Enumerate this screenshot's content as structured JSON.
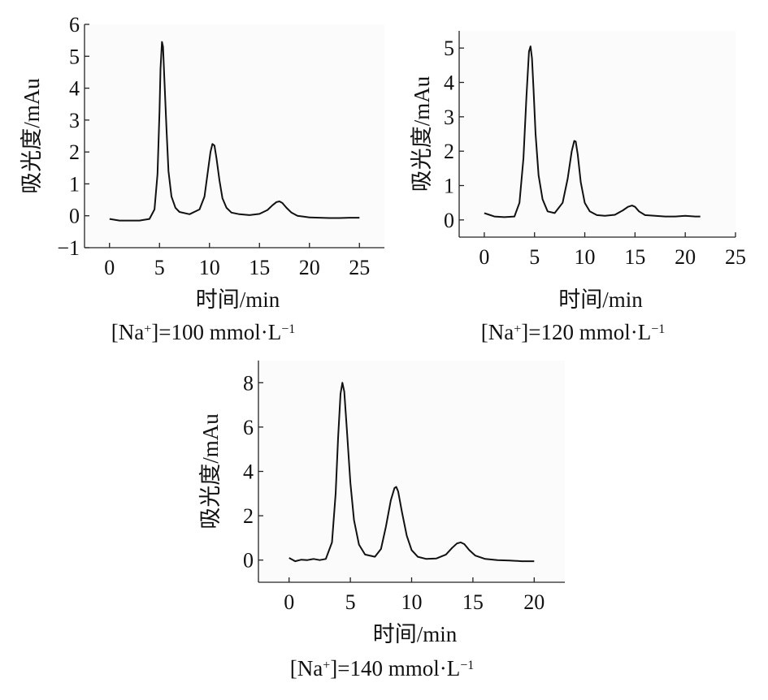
{
  "chart_data": [
    {
      "type": "line",
      "xlabel": "时间/min",
      "ylabel": "吸光度/mAu",
      "caption": {
        "pre": "[Na",
        "sup1": "+",
        "mid": "]=100 mmol·L",
        "sup2": "−1"
      },
      "xlim": [
        -2.5,
        27.5
      ],
      "ylim": [
        -1,
        6
      ],
      "xticks": [
        0,
        5,
        10,
        15,
        20,
        25
      ],
      "yticks": [
        -1,
        0,
        1,
        2,
        3,
        4,
        5,
        6
      ],
      "grid": false,
      "series": [
        {
          "x": [
            0,
            1,
            2,
            3,
            4,
            4.5,
            4.8,
            5.0,
            5.1,
            5.25,
            5.35,
            5.5,
            5.7,
            5.9,
            6.2,
            6.6,
            7,
            8,
            9,
            9.5,
            9.8,
            10.1,
            10.3,
            10.5,
            10.7,
            11.0,
            11.3,
            11.7,
            12.2,
            13,
            14,
            15,
            15.8,
            16.3,
            16.7,
            17.0,
            17.3,
            17.7,
            18.2,
            18.8,
            19.5,
            20,
            21,
            22,
            23,
            24,
            25
          ],
          "y": [
            -0.1,
            -0.15,
            -0.15,
            -0.15,
            -0.1,
            0.2,
            1.3,
            3.3,
            4.6,
            5.45,
            5.3,
            4.2,
            2.7,
            1.4,
            0.6,
            0.25,
            0.12,
            0.05,
            0.2,
            0.6,
            1.3,
            2.0,
            2.25,
            2.2,
            1.8,
            1.1,
            0.55,
            0.25,
            0.1,
            0.05,
            0.02,
            0.06,
            0.18,
            0.33,
            0.43,
            0.45,
            0.4,
            0.25,
            0.1,
            0.0,
            -0.03,
            -0.05,
            -0.06,
            -0.07,
            -0.07,
            -0.06,
            -0.06
          ]
        }
      ]
    },
    {
      "type": "line",
      "xlabel": "时间/min",
      "ylabel": "吸光度/mAu",
      "caption": {
        "pre": "[Na",
        "sup1": "+",
        "mid": "]=120 mmol·L",
        "sup2": "−1"
      },
      "xlim": [
        -2.5,
        25
      ],
      "ylim": [
        -0.5,
        5.5
      ],
      "xticks": [
        0,
        5,
        10,
        15,
        20,
        25
      ],
      "yticks": [
        0,
        1,
        2,
        3,
        4,
        5
      ],
      "grid": false,
      "series": [
        {
          "x": [
            0,
            0.5,
            1,
            2,
            3,
            3.5,
            3.9,
            4.2,
            4.45,
            4.6,
            4.75,
            4.9,
            5.1,
            5.4,
            5.8,
            6.3,
            7,
            7.8,
            8.3,
            8.7,
            8.95,
            9.1,
            9.3,
            9.6,
            10.0,
            10.5,
            11.2,
            12,
            13,
            13.8,
            14.3,
            14.7,
            15.0,
            15.4,
            16,
            17,
            18,
            19,
            20,
            21,
            21.5
          ],
          "y": [
            0.2,
            0.15,
            0.1,
            0.08,
            0.1,
            0.5,
            1.8,
            3.6,
            4.9,
            5.05,
            4.7,
            3.8,
            2.5,
            1.3,
            0.6,
            0.25,
            0.2,
            0.5,
            1.2,
            2.0,
            2.3,
            2.28,
            1.9,
            1.1,
            0.5,
            0.25,
            0.14,
            0.12,
            0.15,
            0.28,
            0.38,
            0.42,
            0.38,
            0.25,
            0.14,
            0.12,
            0.1,
            0.1,
            0.12,
            0.1,
            0.1
          ]
        }
      ]
    },
    {
      "type": "line",
      "xlabel": "时间/min",
      "ylabel": "吸光度/mAu",
      "caption": {
        "pre": "[Na",
        "sup1": "+",
        "mid": "]=140 mmol·L",
        "sup2": "−1"
      },
      "xlim": [
        -2.5,
        22.5
      ],
      "ylim": [
        -1,
        9
      ],
      "xticks": [
        0,
        5,
        10,
        15,
        20
      ],
      "yticks": [
        0,
        2,
        4,
        6,
        8
      ],
      "grid": false,
      "series": [
        {
          "x": [
            0,
            0.5,
            1,
            1.5,
            2,
            2.5,
            3,
            3.5,
            3.8,
            4.0,
            4.2,
            4.35,
            4.5,
            4.7,
            5.0,
            5.3,
            5.7,
            6.2,
            7,
            7.5,
            7.9,
            8.3,
            8.6,
            8.75,
            8.9,
            9.2,
            9.6,
            10.0,
            10.5,
            11.2,
            12,
            12.8,
            13.3,
            13.7,
            14.0,
            14.3,
            14.7,
            15.2,
            16,
            17,
            18,
            19,
            20
          ],
          "y": [
            0.1,
            -0.05,
            0.02,
            0.0,
            0.05,
            0.0,
            0.05,
            0.8,
            3.0,
            5.5,
            7.5,
            8.0,
            7.6,
            6.0,
            3.5,
            1.8,
            0.7,
            0.25,
            0.15,
            0.5,
            1.5,
            2.7,
            3.25,
            3.3,
            3.1,
            2.2,
            1.1,
            0.45,
            0.15,
            0.05,
            0.07,
            0.25,
            0.55,
            0.75,
            0.8,
            0.72,
            0.45,
            0.2,
            0.05,
            0.0,
            -0.02,
            -0.05,
            -0.05
          ]
        }
      ]
    }
  ]
}
